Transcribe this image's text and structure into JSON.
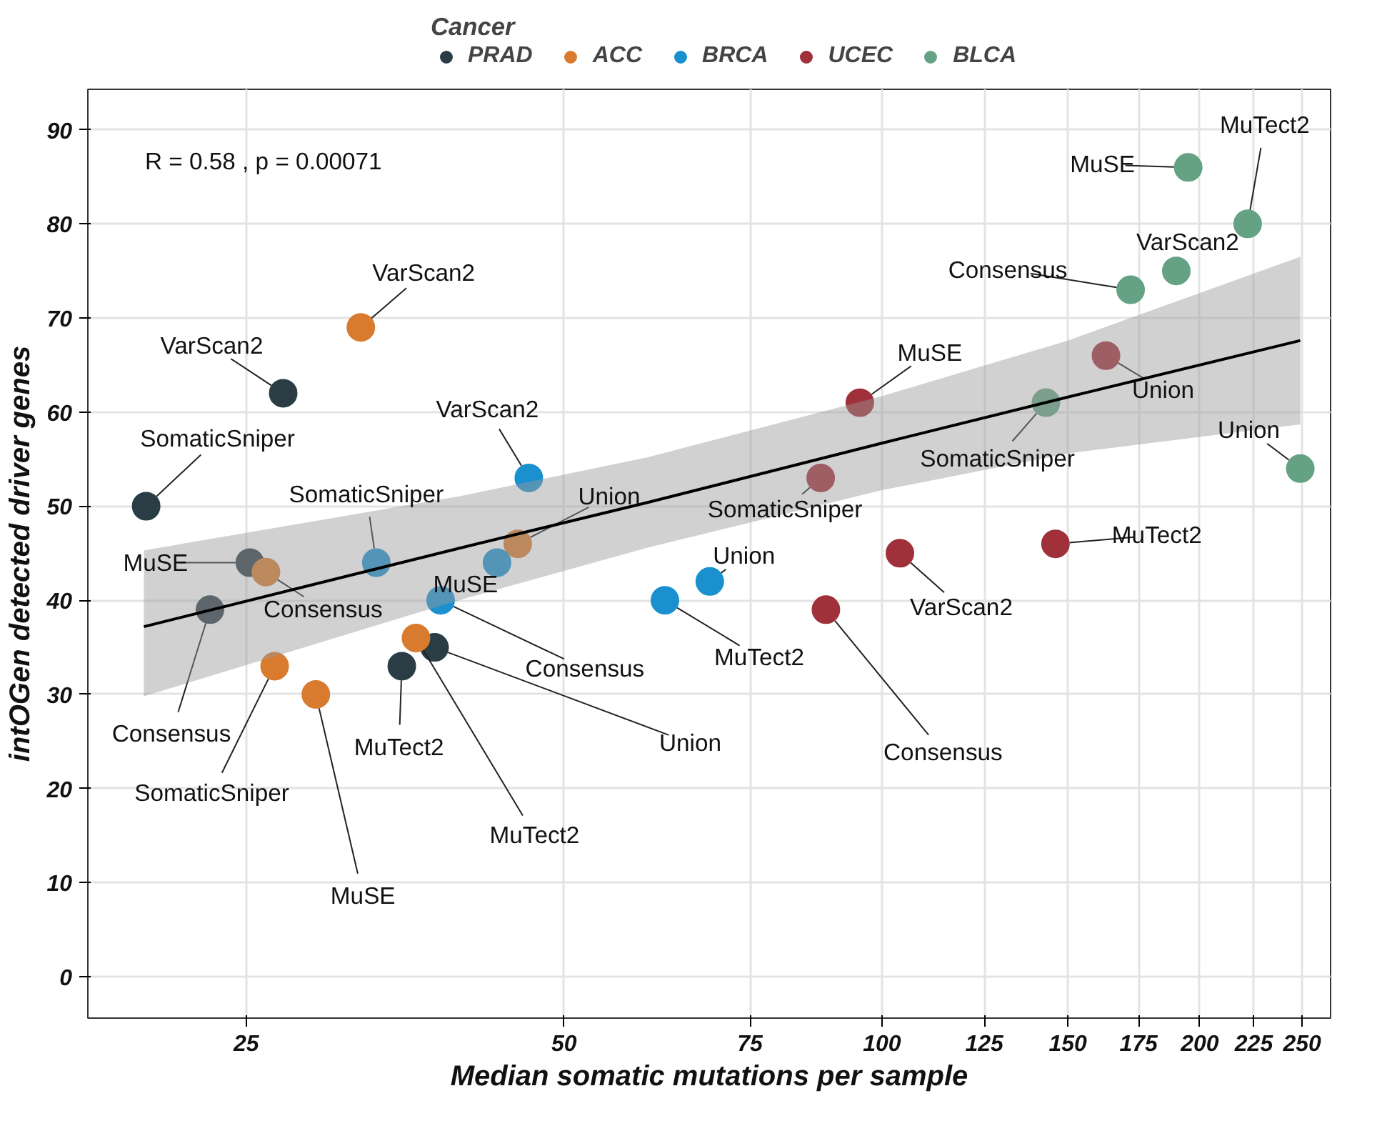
{
  "chart_data": {
    "type": "scatter",
    "xlabel": "Median somatic mutations per sample",
    "ylabel": "intOGen detected driver genes",
    "legend_title": "Cancer",
    "legend": "top",
    "grid": true,
    "log": "x",
    "xlim": [
      17.7,
      266
    ],
    "xticks": [
      25,
      50,
      75,
      100,
      125,
      150,
      175,
      200,
      225,
      250
    ],
    "ylim": [
      -4.4,
      94.3
    ],
    "yticks": [
      0,
      10,
      20,
      30,
      40,
      50,
      60,
      70,
      80,
      90
    ],
    "annotations": [
      "R = 0.58 , p = 0.00071"
    ],
    "series": [
      {
        "name": "PRAD",
        "color": "#2a3d45",
        "marker": "circle",
        "x": [
          20.1,
          27.1,
          25.2,
          23.1,
          35.1,
          37.7
        ],
        "values": [
          50,
          62,
          44,
          39,
          33,
          35
        ],
        "value_labels": [
          "SomaticSniper",
          "VarScan2",
          "MuSE",
          "Consensus",
          "MuTect2",
          "Union"
        ]
      },
      {
        "name": "ACC",
        "color": "#d97b2f",
        "marker": "circle",
        "x": [
          32.1,
          26.1,
          26.6,
          29.1,
          36.2,
          45.2
        ],
        "values": [
          69,
          43,
          33,
          30,
          36,
          46
        ],
        "value_labels": [
          "VarScan2",
          "Consensus",
          "SomaticSniper",
          "MuSE",
          "MuTect2",
          "Union"
        ]
      },
      {
        "name": "BRCA",
        "color": "#1a90cf",
        "marker": "circle",
        "x": [
          46.3,
          33.2,
          43.2,
          38.2,
          62.3,
          68.7
        ],
        "values": [
          53,
          44,
          44,
          40,
          40,
          42
        ],
        "value_labels": [
          "VarScan2",
          "SomaticSniper",
          "MuSE",
          "Consensus",
          "MuTect2",
          "Union"
        ]
      },
      {
        "name": "UCEC",
        "color": "#a0303a",
        "marker": "circle",
        "x": [
          95.3,
          87.5,
          88.5,
          104,
          146,
          163
        ],
        "values": [
          61,
          53,
          39,
          45,
          46,
          66
        ],
        "value_labels": [
          "MuSE",
          "SomaticSniper",
          "Consensus",
          "VarScan2",
          "MuTect2",
          "Union"
        ]
      },
      {
        "name": "BLCA",
        "color": "#64a283",
        "marker": "circle",
        "x": [
          143,
          172,
          190,
          195,
          222,
          249
        ],
        "values": [
          61,
          73,
          75,
          86,
          80,
          54
        ],
        "value_labels": [
          "SomaticSniper",
          "Consensus",
          "VarScan2",
          "MuSE",
          "MuTect2",
          "Union"
        ]
      },
      {
        "type": "line",
        "color": "#000000",
        "marker": "none",
        "x": [
          20,
          40,
          60,
          100,
          150,
          249
        ],
        "values": [
          37.2,
          45.6,
          50.4,
          56.7,
          61.6,
          67.6
        ],
        "lower": [
          29.8,
          40.1,
          45.6,
          51.7,
          55.6,
          58.7
        ],
        "upper": [
          45.3,
          51.1,
          55.2,
          61.7,
          67.6,
          76.5
        ]
      }
    ]
  }
}
